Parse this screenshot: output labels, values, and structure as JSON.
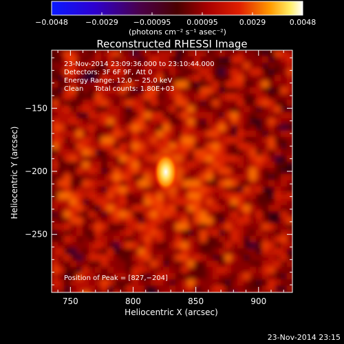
{
  "colorbar": {
    "ticks": [
      "−0.0048",
      "−0.0029",
      "−0.00095",
      "0.00095",
      "0.0029",
      "0.0048"
    ],
    "units": "(photons cm⁻² s⁻¹ asec⁻²)",
    "colors": [
      "#0a1aff",
      "#5a0099",
      "#7a0000",
      "#d01a00",
      "#ff8c00",
      "#ffffff"
    ]
  },
  "image": {
    "title": "Reconstructed RHESSI Image",
    "info_lines": [
      "23-Nov-2014 23:09:36.000 to 23:10:44.000",
      "Detectors: 3F 6F 9F, Att 0",
      "Energy Range: 12.0 − 25.0 keV",
      "Clean     Total counts: 1.80E+03"
    ],
    "peak_label": "Position of Peak = [827,−204]",
    "peak_position": [
      827,
      -204
    ],
    "x_label": "Heliocentric X (arcsec)",
    "y_label": "Heliocentric Y (arcsec)",
    "x_ticks": [
      "750",
      "800",
      "850",
      "900"
    ],
    "y_ticks": [
      "−150",
      "−200",
      "−250"
    ],
    "x_tick_values": [
      750,
      800,
      850,
      900
    ],
    "y_tick_values": [
      -150,
      -200,
      -250
    ],
    "x_range": [
      735,
      927
    ],
    "y_range": [
      -296,
      -104
    ]
  },
  "footer": {
    "timestamp": "23-Nov-2014 23:15"
  }
}
